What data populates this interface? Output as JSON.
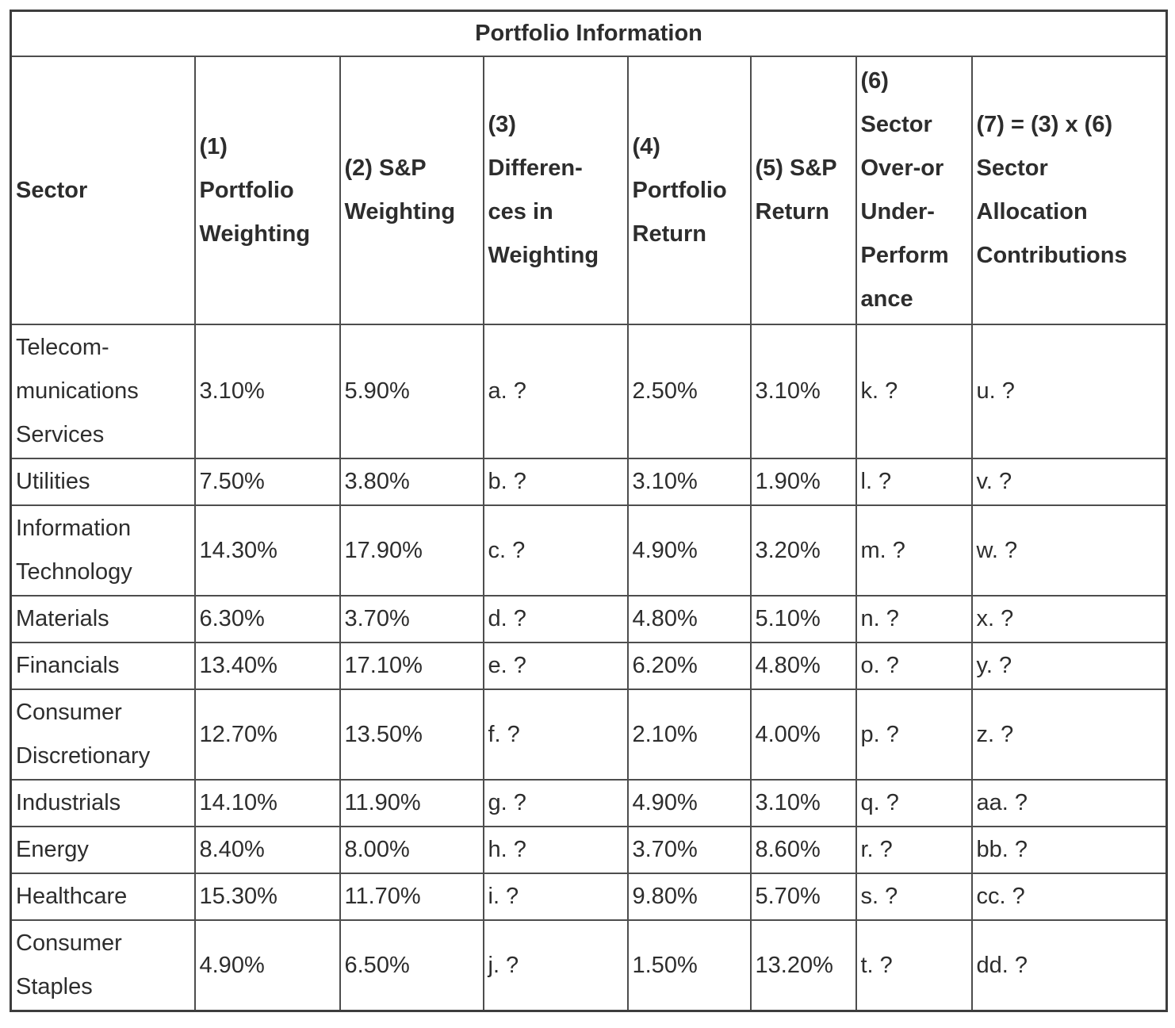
{
  "table": {
    "title": "Portfolio Information",
    "columns": [
      {
        "label": "Sector"
      },
      {
        "label": "(1)\nPortfolio\nWeighting"
      },
      {
        "label": "(2) S&P\nWeighting"
      },
      {
        "label": "(3)\nDifferen-\nces in\nWeighting"
      },
      {
        "label": "(4)\nPortfolio\nReturn"
      },
      {
        "label": "(5) S&P\nReturn"
      },
      {
        "label": "(6)\nSector\nOver-or\nUnder-\nPerform\nance"
      },
      {
        "label": "(7) = (3) x (6)\nSector\nAllocation\nContributions"
      }
    ],
    "rows": [
      [
        "Telecom-\nmunications\nServices",
        "3.10%",
        "5.90%",
        "a. ?",
        "2.50%",
        "3.10%",
        "k. ?",
        "u. ?"
      ],
      [
        "Utilities",
        "7.50%",
        "3.80%",
        "b. ?",
        "3.10%",
        "1.90%",
        "l. ?",
        "v. ?"
      ],
      [
        "Information\nTechnology",
        "14.30%",
        "17.90%",
        "c. ?",
        "4.90%",
        "3.20%",
        "m. ?",
        "w. ?"
      ],
      [
        "Materials",
        "6.30%",
        "3.70%",
        "d. ?",
        "4.80%",
        "5.10%",
        "n. ?",
        "x. ?"
      ],
      [
        "Financials",
        "13.40%",
        "17.10%",
        "e. ?",
        "6.20%",
        "4.80%",
        "o. ?",
        "y. ?"
      ],
      [
        "Consumer\nDiscretionary",
        "12.70%",
        "13.50%",
        "f. ?",
        "2.10%",
        "4.00%",
        "p. ?",
        "z. ?"
      ],
      [
        "Industrials",
        "14.10%",
        "11.90%",
        "g. ?",
        "4.90%",
        "3.10%",
        "q. ?",
        "aa. ?"
      ],
      [
        "Energy",
        "8.40%",
        "8.00%",
        "h. ?",
        "3.70%",
        "8.60%",
        "r. ?",
        "bb. ?"
      ],
      [
        "Healthcare",
        "15.30%",
        "11.70%",
        "i. ?",
        "9.80%",
        "5.70%",
        "s. ?",
        "cc. ?"
      ],
      [
        "Consumer\nStaples",
        "4.90%",
        "6.50%",
        "j. ?",
        "1.50%",
        "13.20%",
        "t. ?",
        "dd. ?"
      ]
    ]
  }
}
